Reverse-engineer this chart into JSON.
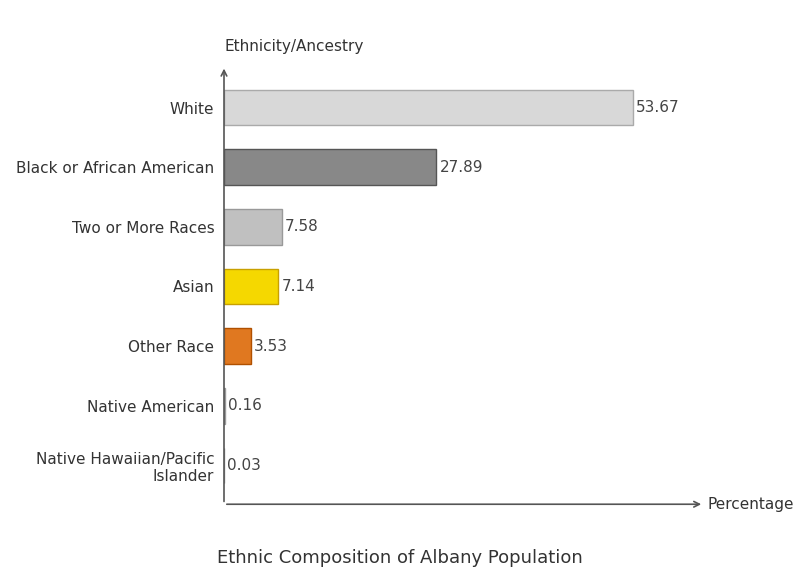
{
  "categories": [
    "Native Hawaiian/Pacific\nIslander",
    "Native American",
    "Other Race",
    "Asian",
    "Two or More Races",
    "Black or African American",
    "White"
  ],
  "values": [
    0.03,
    0.16,
    3.53,
    7.14,
    7.58,
    27.89,
    53.67
  ],
  "bar_colors": [
    "#d4d4d4",
    "#d4d4d4",
    "#e07820",
    "#f5d800",
    "#c0c0c0",
    "#888888",
    "#d8d8d8"
  ],
  "edge_colors": [
    "#999999",
    "#999999",
    "#b05000",
    "#c8a000",
    "#999999",
    "#555555",
    "#aaaaaa"
  ],
  "value_labels": [
    "0.03",
    "0.16",
    "3.53",
    "7.14",
    "7.58",
    "27.89",
    "53.67"
  ],
  "xlabel": "Percentage",
  "ylabel": "Ethnicity/Ancestry",
  "title": "Ethnic Composition of Albany Population",
  "xlim": [
    0,
    63
  ],
  "background_color": "#ffffff",
  "title_fontsize": 13,
  "label_fontsize": 11,
  "tick_fontsize": 11,
  "bar_height": 0.6
}
